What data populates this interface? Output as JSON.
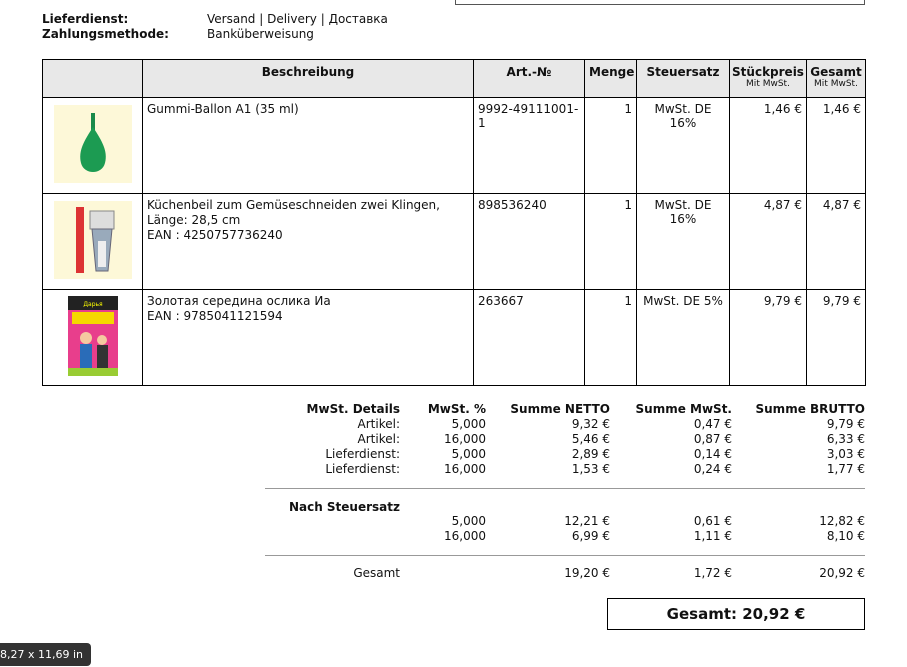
{
  "info": [
    {
      "label": "Lieferdienst:",
      "value": "Versand | Delivery | Доставка"
    },
    {
      "label": "Zahlungsmethode:",
      "value": "Banküberweisung"
    }
  ],
  "items_table": {
    "header": [
      "Beschreibung",
      "Art.-№",
      "Menge",
      "Steuersatz",
      "Stückpreis",
      "Gesamt"
    ],
    "header_sub": [
      "Mit MwSt.",
      "Mit MwSt."
    ],
    "rows": [
      {
        "description": [
          "Gummi-Ballon A1 (35 ml)"
        ],
        "art": "9992-49111001-1",
        "qty": "1",
        "tax": "MwSt. DE 16%",
        "price": "1,46 €",
        "total": "1,46 €"
      },
      {
        "description": [
          "Küchenbeil zum Gemüseschneiden zwei Klingen, Länge: 28,5 cm",
          "EAN : 4250757736240"
        ],
        "art": "898536240",
        "qty": "1",
        "tax": "MwSt. DE 16%",
        "price": "4,87 €",
        "total": "4,87 €"
      },
      {
        "description": [
          "Золотая середина ослика Иа",
          "EAN : 9785041121594"
        ],
        "art": "263667",
        "qty": "1",
        "tax": "MwSt. DE 5%",
        "price": "9,79 €",
        "total": "9,79 €"
      }
    ]
  },
  "tax_details": {
    "header": [
      "MwSt. Details",
      "MwSt. %",
      "Summe NETTO",
      "Summe MwSt.",
      "Summe BRUTTO"
    ],
    "rows": [
      [
        "Artikel:",
        "5,000",
        "9,32 €",
        "0,47 €",
        "9,79 €"
      ],
      [
        "Artikel:",
        "16,000",
        "5,46 €",
        "0,87 €",
        "6,33 €"
      ],
      [
        "Lieferdienst:",
        "5,000",
        "2,89 €",
        "0,14 €",
        "3,03 €"
      ],
      [
        "Lieferdienst:",
        "16,000",
        "1,53 €",
        "0,24 €",
        "1,77 €"
      ]
    ],
    "by_rate_title": "Nach Steuersatz",
    "by_rate_rows": [
      [
        "5,000",
        "12,21 €",
        "0,61 €",
        "12,82 €"
      ],
      [
        "16,000",
        "6,99 €",
        "1,11 €",
        "8,10 €"
      ]
    ],
    "total_row": [
      "Gesamt",
      "19,20 €",
      "1,72 €",
      "20,92 €"
    ]
  },
  "grand_total": "Gesamt: 20,92 €",
  "page_size_badge": "8,27 x 11,69 in"
}
